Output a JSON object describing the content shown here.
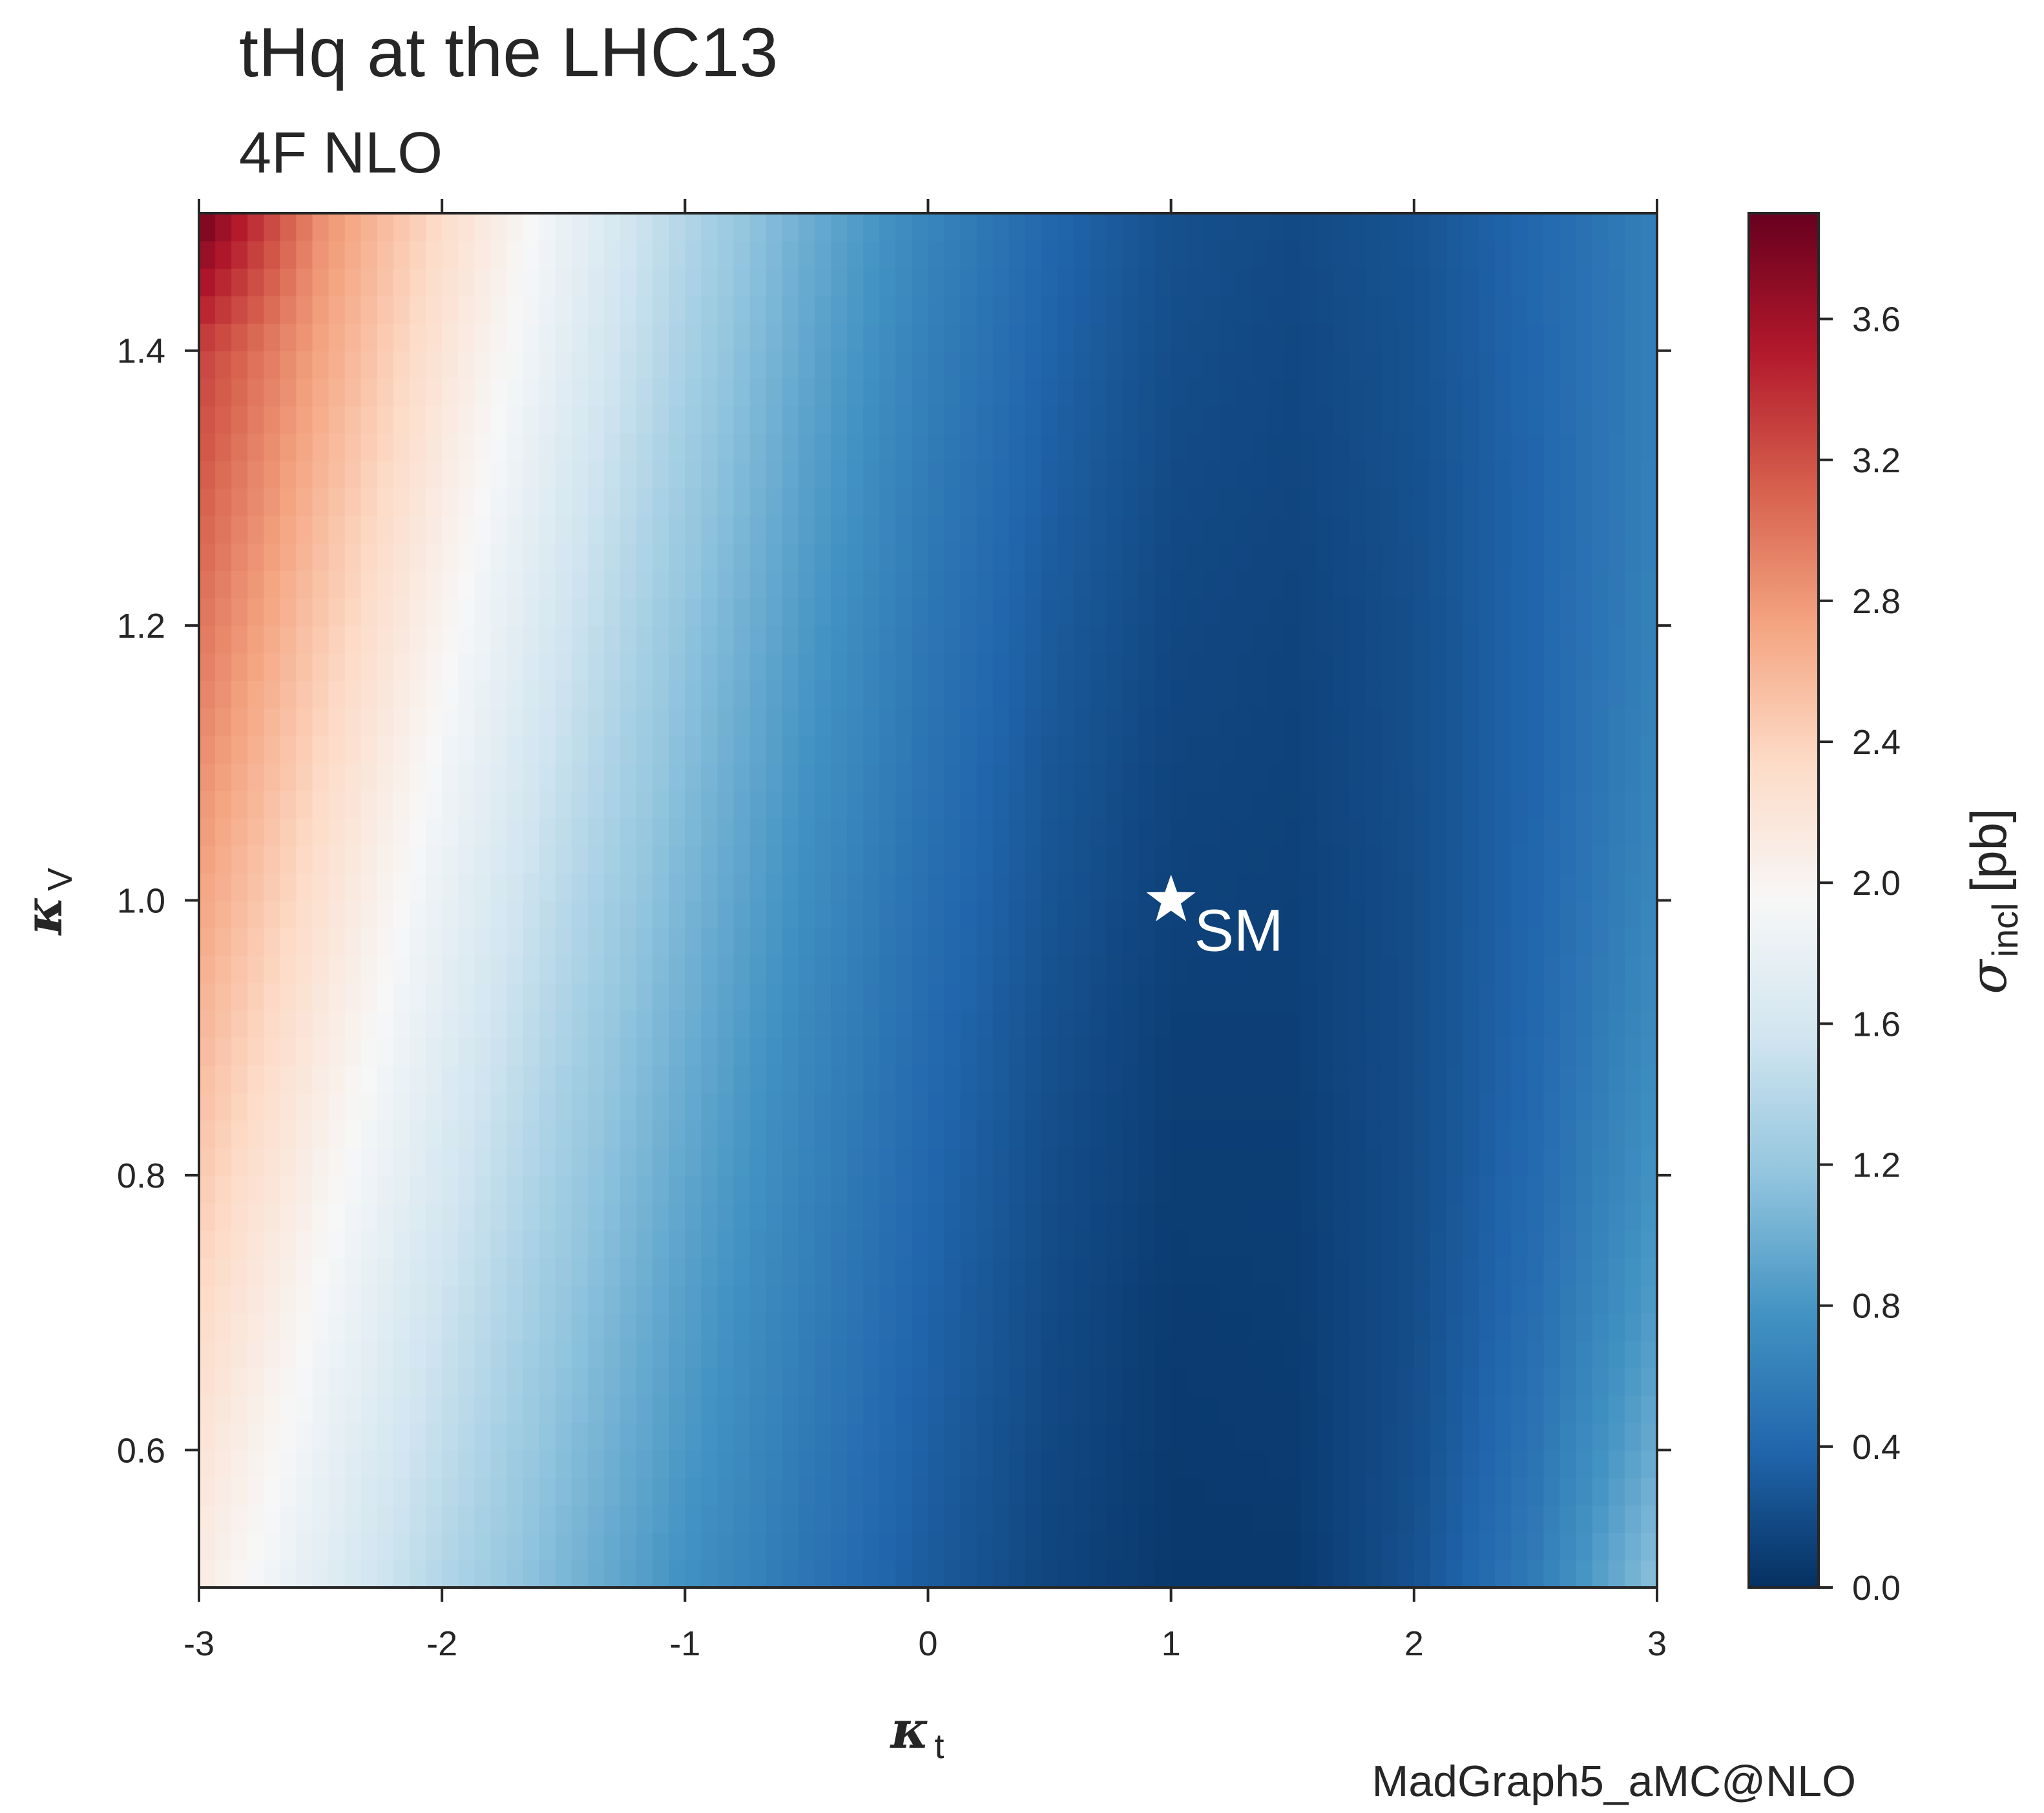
{
  "header": {
    "title": "tHq at the LHC13",
    "subtitle": "4F NLO"
  },
  "footer": {
    "generator": "MadGraph5_aMC@NLO"
  },
  "chart_data": {
    "type": "heatmap",
    "title": "tHq at the LHC13",
    "subtitle": "4F NLO",
    "xlabel": "κt",
    "ylabel": "κV",
    "xlabel_parts": {
      "symbol": "κ",
      "sub": "t"
    },
    "ylabel_parts": {
      "symbol": "κ",
      "sub": "V"
    },
    "colorbar_label_parts": {
      "symbol": "σ",
      "sub": "incl",
      "unit": "[pb]"
    },
    "colorbar_label": "σincl [pb]",
    "xlim": [
      -3,
      3
    ],
    "ylim": [
      0.5,
      1.5
    ],
    "clim": [
      0.0,
      3.9
    ],
    "x_ticks": [
      -3,
      -2,
      -1,
      0,
      1,
      2,
      3
    ],
    "x_tick_labels": [
      "-3",
      "-2",
      "-1",
      "0",
      "1",
      "2",
      "3"
    ],
    "y_ticks": [
      0.6,
      0.8,
      1.0,
      1.2,
      1.4
    ],
    "y_tick_labels": [
      "0.6",
      "0.8",
      "1.0",
      "1.2",
      "1.4"
    ],
    "colorbar_ticks": [
      0.0,
      0.4,
      0.8,
      1.2,
      1.6,
      2.0,
      2.4,
      2.8,
      3.2,
      3.6
    ],
    "colorbar_tick_labels": [
      "0.0",
      "0.4",
      "0.8",
      "1.2",
      "1.6",
      "2.0",
      "2.4",
      "2.8",
      "3.2",
      "3.6"
    ],
    "colormap": [
      "#053061",
      "#2166ac",
      "#4393c3",
      "#92c5de",
      "#d1e5f0",
      "#f7f7f7",
      "#fddbc7",
      "#f4a582",
      "#d6604d",
      "#b2182b",
      "#67001f"
    ],
    "x": [
      -3,
      -2.5,
      -2,
      -1.5,
      -1,
      -0.5,
      0,
      0.5,
      1,
      1.5,
      2,
      2.5,
      3
    ],
    "y": [
      0.5,
      0.6,
      0.7,
      0.8,
      0.9,
      1.0,
      1.1,
      1.2,
      1.3,
      1.4,
      1.5
    ],
    "z": [
      [
        2.1,
        1.72,
        1.37,
        1.05,
        0.76,
        0.52,
        0.31,
        0.15,
        0.06,
        0.06,
        0.24,
        0.58,
        1.15
      ],
      [
        2.22,
        1.82,
        1.46,
        1.12,
        0.82,
        0.56,
        0.34,
        0.17,
        0.07,
        0.08,
        0.22,
        0.51,
        0.98
      ],
      [
        2.34,
        1.92,
        1.54,
        1.19,
        0.87,
        0.6,
        0.37,
        0.19,
        0.08,
        0.09,
        0.21,
        0.46,
        0.86
      ],
      [
        2.47,
        2.03,
        1.63,
        1.26,
        0.93,
        0.64,
        0.4,
        0.21,
        0.1,
        0.1,
        0.21,
        0.43,
        0.78
      ],
      [
        2.6,
        2.14,
        1.72,
        1.33,
        0.99,
        0.68,
        0.43,
        0.23,
        0.11,
        0.11,
        0.21,
        0.41,
        0.72
      ],
      [
        2.73,
        2.25,
        1.81,
        1.41,
        1.05,
        0.73,
        0.46,
        0.26,
        0.13,
        0.12,
        0.21,
        0.4,
        0.68
      ],
      [
        2.87,
        2.36,
        1.91,
        1.49,
        1.11,
        0.78,
        0.5,
        0.28,
        0.15,
        0.13,
        0.22,
        0.39,
        0.65
      ],
      [
        3.01,
        2.48,
        2.01,
        1.57,
        1.17,
        0.83,
        0.53,
        0.31,
        0.17,
        0.14,
        0.22,
        0.39,
        0.63
      ],
      [
        3.15,
        2.6,
        2.11,
        1.65,
        1.24,
        0.88,
        0.57,
        0.34,
        0.19,
        0.16,
        0.23,
        0.39,
        0.62
      ],
      [
        3.3,
        2.73,
        2.21,
        1.74,
        1.31,
        0.93,
        0.61,
        0.37,
        0.21,
        0.17,
        0.24,
        0.4,
        0.61
      ],
      [
        3.88,
        2.86,
        2.32,
        1.83,
        1.38,
        0.99,
        0.66,
        0.4,
        0.23,
        0.19,
        0.25,
        0.41,
        0.61
      ]
    ],
    "annotations": [
      {
        "text": "SM",
        "x": 1.0,
        "y": 1.0,
        "marker": "star",
        "color": "#ffffff"
      }
    ],
    "grid": false
  }
}
